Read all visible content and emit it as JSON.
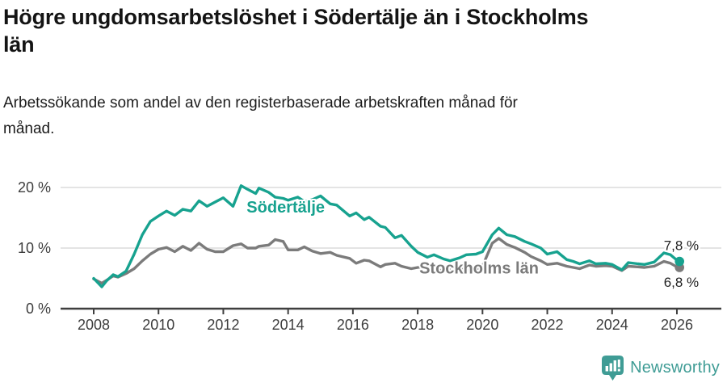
{
  "header": {
    "title": "Högre ungdomsarbetslöshet i Södertälje än i Stockholms\nlän",
    "subtitle": "Arbetssökande som andel av den registerbaserade arbetskraften månad för\nmånad."
  },
  "chart_data": {
    "type": "line",
    "title": "Högre ungdomsarbetslöshet i Södertälje än i Stockholms län",
    "subtitle": "Arbetssökande som andel av den registerbaserade arbetskraften månad för månad.",
    "unit": "%",
    "x_range": [
      2008,
      2026.4
    ],
    "ylim": [
      0,
      22
    ],
    "grid": "horizontal",
    "x_ticks": [
      2008,
      2010,
      2012,
      2014,
      2016,
      2018,
      2020,
      2022,
      2024,
      2026
    ],
    "y_ticks": [
      {
        "value": 0,
        "label": "0 %"
      },
      {
        "value": 10,
        "label": "10 %"
      },
      {
        "value": 20,
        "label": "20 %"
      }
    ],
    "series": [
      {
        "name": "Södertälje",
        "color": "#17a28f",
        "end_label": "7,8 %",
        "end_label_position": "above",
        "label_pos": {
          "x": 2012.72,
          "y": 15.9
        },
        "x": [
          2008.0,
          2008.25,
          2008.4,
          2008.6,
          2008.75,
          2009.0,
          2009.25,
          2009.5,
          2009.75,
          2010.0,
          2010.25,
          2010.5,
          2010.75,
          2011.0,
          2011.25,
          2011.5,
          2011.75,
          2012.0,
          2012.3,
          2012.55,
          2012.75,
          2013.0,
          2013.1,
          2013.4,
          2013.6,
          2013.85,
          2014.0,
          2014.3,
          2014.5,
          2014.75,
          2015.0,
          2015.3,
          2015.5,
          2015.9,
          2016.1,
          2016.35,
          2016.5,
          2016.85,
          2017.0,
          2017.3,
          2017.5,
          2017.8,
          2018.0,
          2018.3,
          2018.5,
          2018.8,
          2019.0,
          2019.3,
          2019.5,
          2019.8,
          2020.0,
          2020.3,
          2020.5,
          2020.75,
          2021.0,
          2021.3,
          2021.5,
          2021.8,
          2022.0,
          2022.3,
          2022.6,
          2022.8,
          2023.0,
          2023.3,
          2023.5,
          2023.8,
          2024.0,
          2024.3,
          2024.5,
          2024.8,
          2025.0,
          2025.3,
          2025.6,
          2025.8,
          2026.0,
          2026.08
        ],
        "values": [
          5.0,
          3.6,
          4.6,
          5.6,
          5.3,
          6.2,
          9.0,
          12.2,
          14.4,
          15.3,
          16.1,
          15.4,
          16.4,
          16.1,
          17.8,
          16.9,
          17.6,
          18.3,
          16.9,
          20.3,
          19.7,
          19.0,
          19.9,
          19.2,
          18.4,
          18.2,
          17.9,
          18.4,
          17.7,
          18.0,
          18.6,
          17.3,
          17.1,
          15.3,
          15.8,
          14.7,
          15.1,
          13.6,
          13.4,
          11.7,
          12.1,
          10.3,
          9.3,
          8.5,
          8.9,
          8.2,
          7.9,
          8.4,
          8.9,
          9.0,
          9.4,
          12.2,
          13.3,
          12.2,
          11.9,
          11.1,
          10.7,
          10.0,
          9.0,
          9.4,
          8.1,
          7.8,
          7.4,
          7.9,
          7.4,
          7.5,
          7.3,
          6.4,
          7.6,
          7.4,
          7.3,
          7.7,
          9.2,
          8.9,
          8.0,
          7.8
        ]
      },
      {
        "name": "Stockholms län",
        "color": "#7b7b7b",
        "end_label": "6,8 %",
        "end_label_position": "below",
        "label_pos": {
          "x": 2018.05,
          "y": 5.8
        },
        "x": [
          2008.0,
          2008.25,
          2008.4,
          2008.6,
          2008.75,
          2009.0,
          2009.25,
          2009.5,
          2009.75,
          2010.0,
          2010.25,
          2010.5,
          2010.75,
          2011.0,
          2011.25,
          2011.5,
          2011.75,
          2012.0,
          2012.3,
          2012.55,
          2012.75,
          2013.0,
          2013.1,
          2013.4,
          2013.6,
          2013.85,
          2014.0,
          2014.3,
          2014.5,
          2014.75,
          2015.0,
          2015.3,
          2015.5,
          2015.9,
          2016.1,
          2016.35,
          2016.5,
          2016.85,
          2017.0,
          2017.3,
          2017.5,
          2017.8,
          2018.0,
          2018.3,
          2018.5,
          2018.8,
          2019.0,
          2019.3,
          2019.5,
          2019.8,
          2020.0,
          2020.3,
          2020.5,
          2020.75,
          2021.0,
          2021.3,
          2021.5,
          2021.8,
          2022.0,
          2022.3,
          2022.6,
          2022.8,
          2023.0,
          2023.3,
          2023.5,
          2023.8,
          2024.0,
          2024.3,
          2024.5,
          2024.8,
          2025.0,
          2025.3,
          2025.6,
          2025.8,
          2026.0,
          2026.08
        ],
        "values": [
          4.9,
          4.2,
          4.7,
          5.4,
          5.2,
          5.8,
          6.6,
          7.9,
          9.0,
          9.8,
          10.1,
          9.4,
          10.3,
          9.6,
          10.8,
          9.8,
          9.4,
          9.4,
          10.4,
          10.7,
          10.0,
          10.0,
          10.3,
          10.5,
          11.4,
          11.1,
          9.7,
          9.7,
          10.2,
          9.5,
          9.1,
          9.3,
          8.8,
          8.3,
          7.5,
          8.0,
          7.9,
          6.9,
          7.3,
          7.5,
          7.0,
          6.6,
          6.8,
          7.0,
          6.6,
          6.2,
          6.4,
          6.6,
          6.3,
          6.5,
          7.0,
          10.8,
          11.6,
          10.6,
          10.1,
          9.3,
          8.6,
          7.9,
          7.3,
          7.5,
          7.0,
          6.8,
          6.6,
          7.2,
          7.0,
          7.1,
          7.0,
          6.3,
          7.0,
          6.9,
          6.8,
          7.0,
          7.8,
          7.5,
          6.9,
          6.8
        ]
      }
    ],
    "colors": {
      "axis": "#3f3f3f",
      "gridline": "#dcdcdc",
      "tick_text": "#3d3d3d"
    }
  },
  "footer": {
    "brand": "Newsworthy",
    "brand_color": "#3f9c95"
  }
}
